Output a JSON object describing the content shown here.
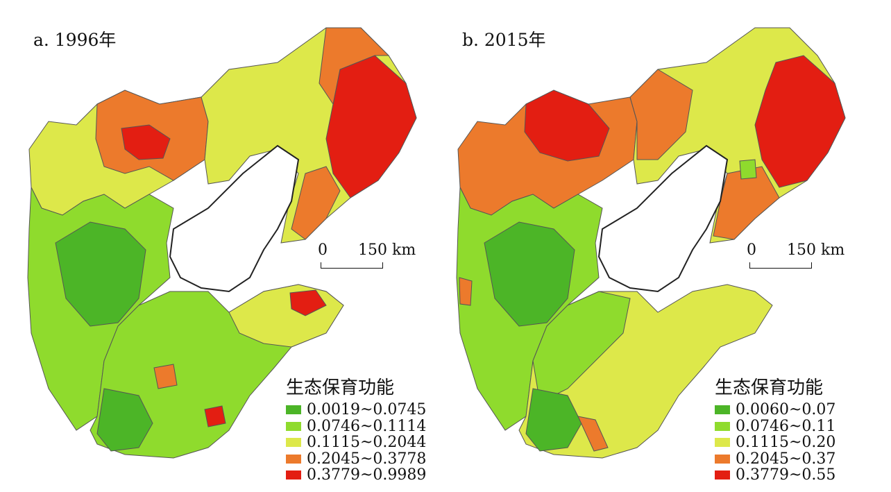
{
  "panels": [
    {
      "title": "a. 1996年",
      "legend_title": "生态保育功能",
      "legend": [
        {
          "label": "0.0019~0.0745",
          "color": "#4cb527"
        },
        {
          "label": "0.0746~0.1114",
          "color": "#8fdb2d"
        },
        {
          "label": "0.1115~0.2044",
          "color": "#dde84a"
        },
        {
          "label": "0.2045~0.3778",
          "color": "#ec7a2c"
        },
        {
          "label": "0.3779~0.9989",
          "color": "#e31e12"
        }
      ]
    },
    {
      "title": "b. 2015年",
      "legend_title": "生态保育功能",
      "legend": [
        {
          "label": "0.0060~0.07",
          "color": "#4cb527"
        },
        {
          "label": "0.0746~0.11",
          "color": "#8fdb2d"
        },
        {
          "label": "0.1115~0.20",
          "color": "#dde84a"
        },
        {
          "label": "0.2045~0.37",
          "color": "#ec7a2c"
        },
        {
          "label": "0.3779~0.55",
          "color": "#e31e12"
        }
      ]
    }
  ],
  "scalebar": {
    "zero": "0",
    "distance": "150",
    "unit": "km"
  }
}
